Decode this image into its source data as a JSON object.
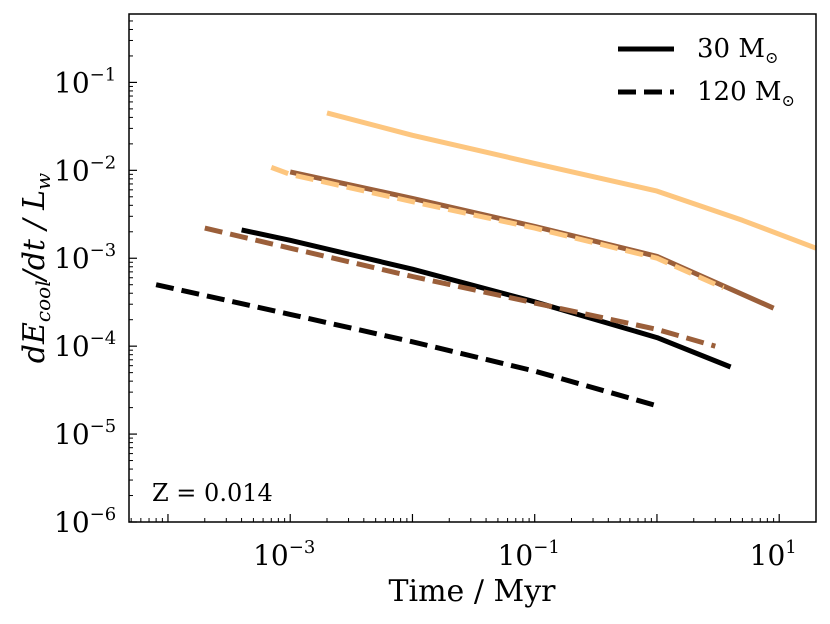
{
  "chart_data": {
    "type": "line",
    "title": "",
    "xlabel": "Time / Myr",
    "ylabel": "dE_cool/dt / L_w",
    "xscale": "log",
    "yscale": "log",
    "xlim": [
      4.8e-05,
      20
    ],
    "ylim": [
      1e-06,
      0.6
    ],
    "x_ticks": [
      {
        "value": 0.001,
        "base": "10",
        "exp": "−3"
      },
      {
        "value": 0.1,
        "base": "10",
        "exp": "−1"
      },
      {
        "value": 10,
        "base": "10",
        "exp": "1"
      }
    ],
    "y_ticks": [
      {
        "value": 0.1,
        "base": "10",
        "exp": "−1"
      },
      {
        "value": 0.01,
        "base": "10",
        "exp": "−2"
      },
      {
        "value": 0.001,
        "base": "10",
        "exp": "−3"
      },
      {
        "value": 0.0001,
        "base": "10",
        "exp": "−4"
      },
      {
        "value": 1e-05,
        "base": "10",
        "exp": "−5"
      },
      {
        "value": 1e-06,
        "base": "10",
        "exp": "−6"
      }
    ],
    "legend": {
      "placement": "top-right",
      "entries": [
        {
          "label": "30 M",
          "subscript": "⊙",
          "style": "solid",
          "color": "#000000"
        },
        {
          "label": "120 M",
          "subscript": "⊙",
          "style": "dashed",
          "color": "#000000"
        }
      ]
    },
    "annotation": "Z = 0.014",
    "series": [
      {
        "name": "30 Msun (black)",
        "color": "#000000",
        "style": "solid",
        "x": [
          0.0004,
          0.001,
          0.01,
          0.1,
          1,
          4
        ],
        "y": [
          0.0021,
          0.0016,
          0.00075,
          0.00032,
          0.000125,
          5.8e-05
        ]
      },
      {
        "name": "120 Msun (black)",
        "color": "#000000",
        "style": "dashed",
        "x": [
          8e-05,
          0.001,
          0.01,
          0.1,
          1
        ],
        "y": [
          0.0005,
          0.00023,
          0.000112,
          5.2e-05,
          2.1e-05
        ]
      },
      {
        "name": "30 Msun (brown)",
        "color": "#9b5f3a",
        "style": "solid",
        "x": [
          0.001,
          0.01,
          0.1,
          1,
          9
        ],
        "y": [
          0.0096,
          0.0048,
          0.0023,
          0.00105,
          0.00027
        ]
      },
      {
        "name": "120 Msun (brown)",
        "color": "#9b5f3a",
        "style": "dashed",
        "x": [
          0.0002,
          0.001,
          0.01,
          0.1,
          1,
          3
        ],
        "y": [
          0.0022,
          0.0013,
          0.00062,
          0.00031,
          0.000155,
          0.0001
        ]
      },
      {
        "name": "30 Msun (light orange)",
        "color": "#fdc67f",
        "style": "solid",
        "x": [
          0.002,
          0.01,
          0.1,
          1,
          5,
          20
        ],
        "y": [
          0.045,
          0.025,
          0.012,
          0.0058,
          0.0027,
          0.0013
        ]
      },
      {
        "name": "120 Msun (light orange)",
        "color": "#fdc67f",
        "style": "dashed",
        "x": [
          0.0007,
          0.001,
          0.01,
          0.1,
          1,
          3.5
        ],
        "y": [
          0.0108,
          0.009,
          0.0044,
          0.0022,
          0.001,
          0.00046
        ]
      }
    ]
  }
}
